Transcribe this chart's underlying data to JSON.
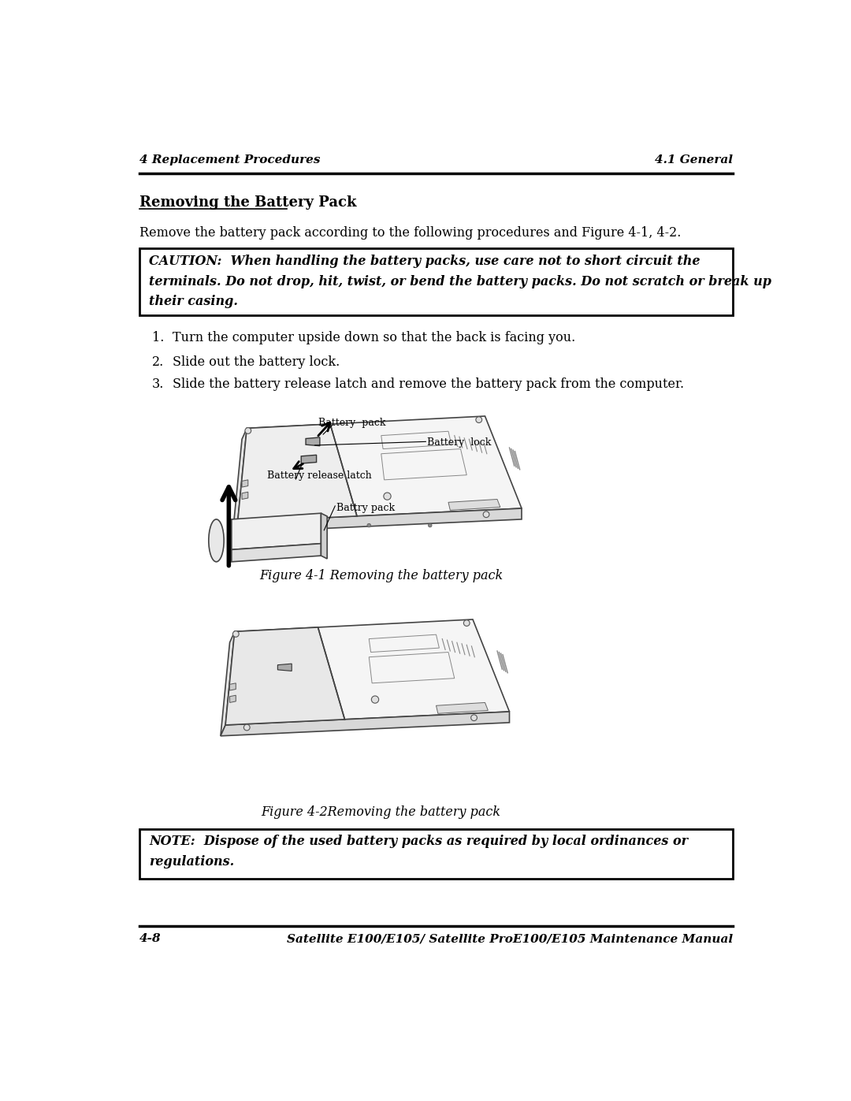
{
  "header_left": "4 Replacement Procedures",
  "header_right": "4.1 General",
  "section_title": "Removing the Battery Pack",
  "intro_text": "Remove the battery pack according to the following procedures and Figure 4-1, 4-2.",
  "caution_text": "CAUTION:  When handling the battery packs, use care not to short circuit the\nterminals. Do not drop, hit, twist, or bend the battery packs. Do not scratch or break up\ntheir casing.",
  "steps": [
    "Turn the computer upside down so that the back is facing you.",
    "Slide out the battery lock.",
    "Slide the battery release latch and remove the battery pack from the computer."
  ],
  "fig1_caption": "Figure 4-1 Removing the battery pack",
  "fig2_caption": "Figure 4-2Removing the battery pack",
  "note_text": "NOTE:  Dispose of the used battery packs as required by local ordinances or\nregulations.",
  "footer_left": "4-8",
  "footer_right": "Satellite E100/E105/ Satellite ProE100/E105 Maintenance Manual",
  "bg_color": "#ffffff",
  "text_color": "#000000",
  "line_color": "#000000",
  "border_color": "#000000",
  "laptop_face_color": "#f8f8f8",
  "laptop_side_color": "#e0e0e0",
  "laptop_edge_color": "#444444"
}
